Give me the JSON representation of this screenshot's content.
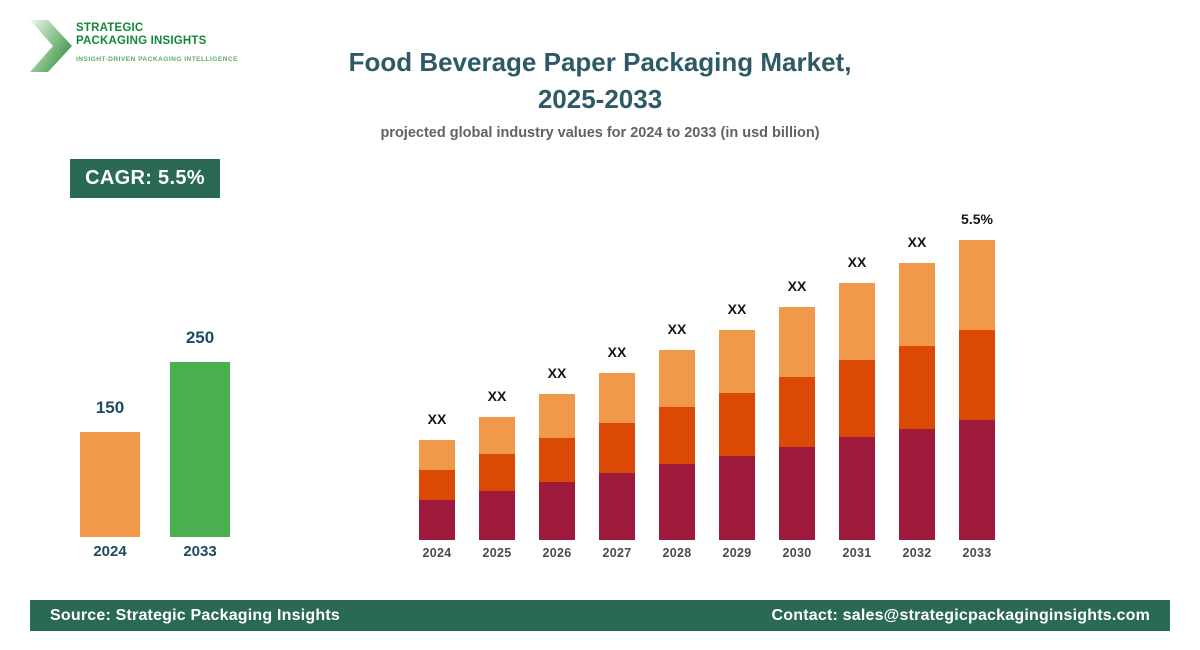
{
  "logo": {
    "line1": "STRATEGIC",
    "line2": "PACKAGING INSIGHTS",
    "tagline": "INSIGHT-DRIVEN PACKAGING INTELLIGENCE"
  },
  "header": {
    "title_line1": "Food Beverage Paper Packaging Market,",
    "title_line2": "2025-2033",
    "subtitle": "projected global industry values for 2024 to 2033 (in usd billion)"
  },
  "cagr_badge": "CAGR: 5.5%",
  "colors": {
    "brand_green_dark": "#2A6A55",
    "logo_green": "#12873B",
    "title_teal": "#2D5A66",
    "mini_label_teal": "#1C4B62",
    "segment_bottom": "#9E1A3C",
    "segment_middle": "#DB4A05",
    "segment_top": "#F0994B",
    "mini_green": "#4CAF50",
    "mini_orange": "#F0994B"
  },
  "chart_data": [
    {
      "type": "bar",
      "name": "market-size-summary",
      "categories": [
        "2024",
        "2033"
      ],
      "values": [
        150,
        250
      ],
      "value_labels": [
        "150",
        "250"
      ],
      "bar_colors": [
        "#F0994B",
        "#4CAF50"
      ],
      "ylabel": "",
      "xlabel": "",
      "ylim": [
        0,
        250
      ],
      "grid": false,
      "legend": false
    },
    {
      "type": "bar",
      "name": "projection-2024-2033",
      "stacked": true,
      "categories": [
        "2024",
        "2025",
        "2026",
        "2027",
        "2028",
        "2029",
        "2030",
        "2031",
        "2032",
        "2033"
      ],
      "series": [
        {
          "name": "segment-bottom",
          "color": "#9E1A3C",
          "values": [
            40,
            49,
            58,
            67,
            76,
            84,
            93,
            103,
            111,
            120
          ]
        },
        {
          "name": "segment-middle",
          "color": "#DB4A05",
          "values": [
            30,
            37,
            44,
            50,
            57,
            63,
            70,
            77,
            83,
            90
          ]
        },
        {
          "name": "segment-top",
          "color": "#F0994B",
          "values": [
            30,
            37,
            44,
            50,
            57,
            63,
            70,
            77,
            83,
            90
          ]
        }
      ],
      "total_labels": [
        "XX",
        "XX",
        "XX",
        "XX",
        "XX",
        "XX",
        "XX",
        "XX",
        "XX",
        "5.5%"
      ],
      "units": "relative heights; actual values shown as XX placeholders",
      "grid": false,
      "legend": false
    }
  ],
  "footer": {
    "source": "Source: Strategic Packaging Insights",
    "contact": "Contact: sales@strategicpackaginginsights.com"
  }
}
